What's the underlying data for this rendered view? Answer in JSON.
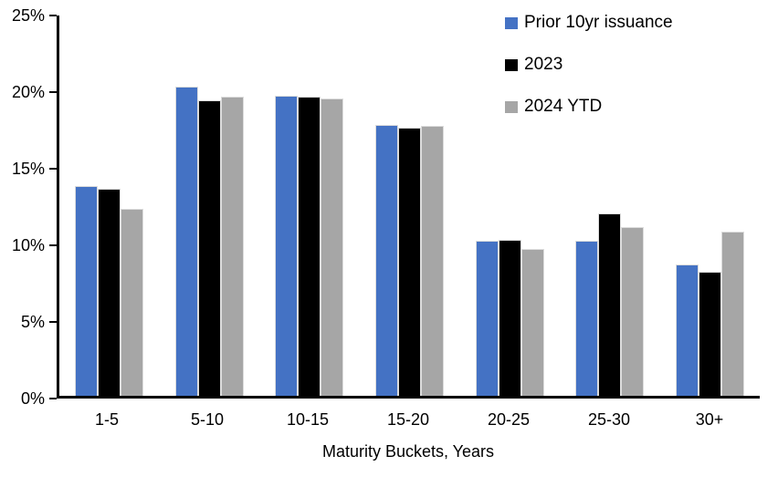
{
  "chart_data": {
    "type": "bar",
    "title": "",
    "categories": [
      "1-5",
      "5-10",
      "10-15",
      "15-20",
      "20-25",
      "25-30",
      "30+"
    ],
    "series": [
      {
        "name": "Prior 10yr issuance",
        "color": "#4472C4",
        "values": [
          13.7,
          20.2,
          19.6,
          17.7,
          10.1,
          10.1,
          8.6
        ]
      },
      {
        "name": "2023",
        "color": "#000000",
        "values": [
          13.5,
          19.3,
          19.5,
          17.5,
          10.2,
          11.9,
          8.1
        ]
      },
      {
        "name": "2024 YTD",
        "color": "#A6A6A6",
        "values": [
          12.2,
          19.5,
          19.4,
          17.6,
          9.6,
          11.0,
          10.7
        ]
      }
    ],
    "xlabel": "Maturity Buckets, Years",
    "ylabel": "",
    "ylim": [
      0,
      25
    ],
    "yticks": [
      0,
      5,
      10,
      15,
      20,
      25
    ],
    "ytick_labels": [
      "0%",
      "5%",
      "10%",
      "15%",
      "20%",
      "25%"
    ],
    "grid": false,
    "legend_position": "top-right",
    "axis_color": "#000000",
    "background_color": "#FFFFFF"
  }
}
